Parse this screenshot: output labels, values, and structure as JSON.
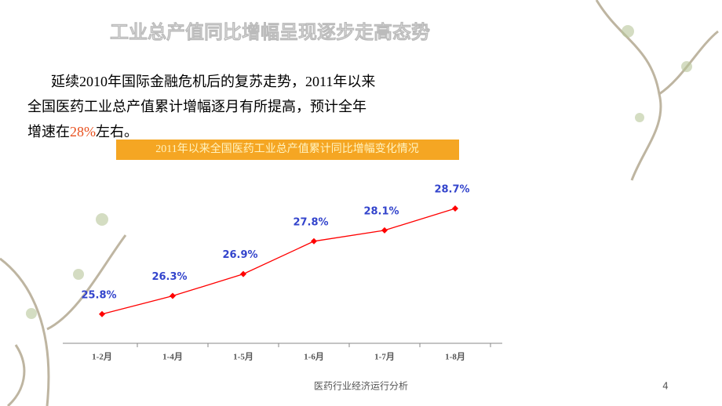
{
  "slide_title": "工业总产值同比增幅呈现逐步走高态势",
  "paragraph": {
    "before": "延续2010年国际金融危机后的复苏走势，2011年以来全国医药工业总产值累计增幅逐月有所提高，预计全年增速在",
    "highlight": "28%",
    "after": "左右。"
  },
  "chart_data": {
    "type": "line",
    "title": "2011年以来全国医药工业总产值累计同比增幅变化情况",
    "categories": [
      "1-2月",
      "1-4月",
      "1-5月",
      "1-6月",
      "1-7月",
      "1-8月"
    ],
    "values": [
      25.8,
      26.3,
      26.9,
      27.8,
      28.1,
      28.7
    ],
    "value_labels": [
      "25.8%",
      "26.3%",
      "26.9%",
      "27.8%",
      "28.1%",
      "28.7%"
    ],
    "color": "#ff0000",
    "label_color": "#3344cc",
    "ylim": [
      25,
      29
    ]
  },
  "footer": {
    "text": "医药行业经济运行分析",
    "page": "4"
  }
}
